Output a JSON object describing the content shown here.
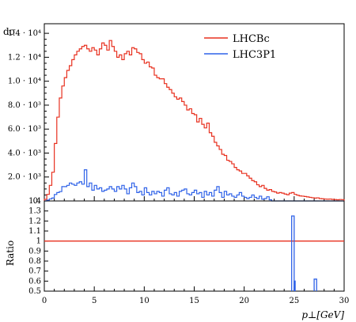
{
  "chart_data": [
    {
      "type": "line",
      "step": true,
      "ylabel": "dσ",
      "xlim": [
        0,
        30
      ],
      "ylim": [
        0,
        14800
      ],
      "legend_position": "top-right",
      "yticks": [
        {
          "value": 2000,
          "label": "2.0 · 10³"
        },
        {
          "value": 4000,
          "label": "4.0 · 10³"
        },
        {
          "value": 6000,
          "label": "6.0 · 10³"
        },
        {
          "value": 8000,
          "label": "8.0 · 10³"
        },
        {
          "value": 10000,
          "label": "1.0 · 10⁴"
        },
        {
          "value": 12000,
          "label": "1.2 · 10⁴"
        },
        {
          "value": 14000,
          "label": "1.4 · 10⁴"
        }
      ],
      "yticks_zero_label": "0",
      "bin_width": 0.25,
      "series": [
        {
          "name": "LHCBc",
          "color": "#e8301f",
          "values": [
            130,
            550,
            1300,
            2400,
            4800,
            7000,
            8600,
            9600,
            10300,
            10900,
            11300,
            11800,
            12200,
            12500,
            12700,
            12900,
            13000,
            12700,
            12500,
            12800,
            12600,
            12200,
            12700,
            13200,
            13000,
            12600,
            13400,
            12900,
            12500,
            12000,
            12200,
            11800,
            12300,
            12500,
            12200,
            12800,
            12700,
            12400,
            12300,
            11800,
            11500,
            11600,
            11200,
            11100,
            10500,
            10300,
            10200,
            10200,
            9800,
            9500,
            9300,
            9000,
            8700,
            8500,
            8600,
            8300,
            8000,
            7600,
            7700,
            7300,
            7200,
            6600,
            6900,
            6400,
            6100,
            6500,
            5700,
            5400,
            4900,
            4600,
            4300,
            3900,
            3800,
            3400,
            3300,
            3100,
            2800,
            2600,
            2500,
            2300,
            2300,
            2100,
            1900,
            1700,
            1600,
            1350,
            1200,
            1300,
            1050,
            900,
            950,
            800,
            750,
            650,
            700,
            650,
            580,
            520,
            650,
            700,
            550,
            480,
            420,
            400,
            370,
            340,
            300,
            270,
            240,
            260,
            200,
            180,
            160,
            150,
            160,
            130,
            115,
            100,
            120,
            110
          ]
        },
        {
          "name": "LHC3P1",
          "color": "#2f62e8",
          "values": [
            0,
            70,
            170,
            250,
            540,
            700,
            780,
            1200,
            1200,
            1300,
            1500,
            1400,
            1300,
            1500,
            1600,
            1400,
            2600,
            1200,
            1500,
            900,
            1300,
            1000,
            1100,
            800,
            900,
            1000,
            1200,
            1000,
            800,
            1200,
            1000,
            1300,
            1000,
            600,
            1100,
            1500,
            1200,
            700,
            800,
            500,
            1100,
            700,
            500,
            800,
            600,
            800,
            700,
            400,
            900,
            1100,
            600,
            500,
            700,
            400,
            800,
            900,
            1000,
            600,
            500,
            700,
            900,
            600,
            700,
            300,
            800,
            500,
            700,
            400,
            900,
            1200,
            700,
            300,
            800,
            500,
            600,
            400,
            300,
            500,
            700,
            400,
            300,
            200,
            300,
            500,
            300,
            200,
            400,
            150,
            200,
            350,
            100,
            0,
            0,
            0,
            0,
            0,
            0,
            0,
            0,
            0,
            0,
            0,
            0,
            0,
            0,
            0,
            0,
            0,
            0,
            0,
            0,
            0,
            0,
            0,
            0,
            0,
            0,
            0,
            0,
            0
          ]
        }
      ]
    },
    {
      "type": "line",
      "ylabel": "Ratio",
      "xlabel": "p⊥[GeV]",
      "xlim": [
        0,
        30
      ],
      "ylim": [
        0.5,
        1.4
      ],
      "xticks": [
        0,
        5,
        10,
        15,
        20,
        25,
        30
      ],
      "yticks": [
        {
          "value": 0.5,
          "label": "0.5"
        },
        {
          "value": 0.6,
          "label": "0.6"
        },
        {
          "value": 0.7,
          "label": "0.7"
        },
        {
          "value": 0.8,
          "label": "0.8"
        },
        {
          "value": 0.9,
          "label": "0.9"
        },
        {
          "value": 1.0,
          "label": "1"
        },
        {
          "value": 1.1,
          "label": "1.1"
        },
        {
          "value": 1.2,
          "label": "1.2"
        },
        {
          "value": 1.3,
          "label": "1.3"
        },
        {
          "value": 1.4,
          "label": "1.4"
        }
      ],
      "reference_line": {
        "value": 1.0,
        "color": "#e8301f"
      },
      "ratio_bins": [
        {
          "x0": 24.75,
          "x1": 25.0,
          "value": 1.25,
          "color": "#2f62e8"
        },
        {
          "x0": 25.0,
          "x1": 25.1,
          "value": 0.6,
          "color": "#2f62e8"
        },
        {
          "x0": 27.0,
          "x1": 27.25,
          "value": 0.62,
          "color": "#2f62e8"
        }
      ]
    }
  ]
}
